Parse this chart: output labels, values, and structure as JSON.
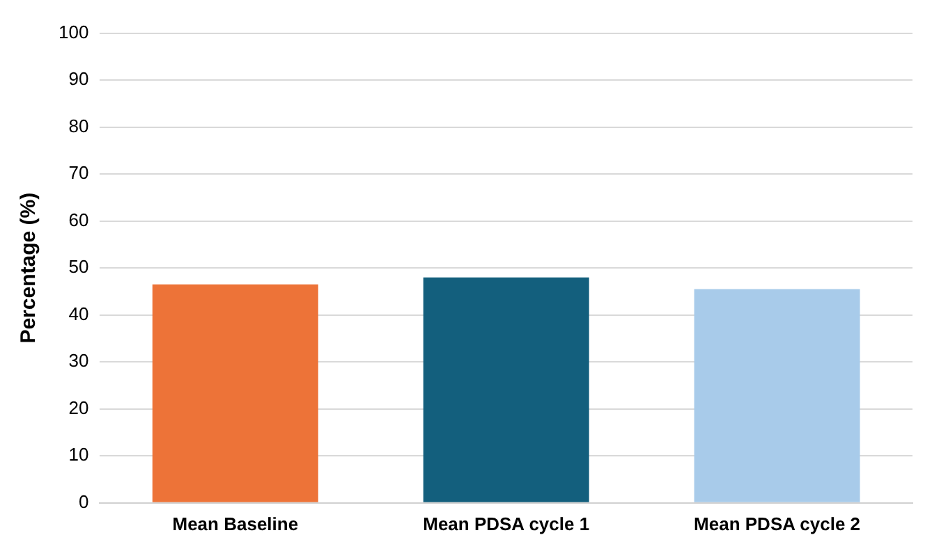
{
  "chart_data": {
    "type": "bar",
    "ylabel": "Percentage (%)",
    "categories": [
      "Mean Baseline",
      "Mean PDSA cycle 1",
      "Mean PDSA cycle 2"
    ],
    "values": [
      46.5,
      48,
      45.5
    ],
    "colors": [
      "#ed7338",
      "#135f7d",
      "#a8cbea"
    ],
    "ylim": [
      0,
      100
    ],
    "yticks": [
      0,
      10,
      20,
      30,
      40,
      50,
      60,
      70,
      80,
      90,
      100
    ],
    "grid": "y"
  }
}
